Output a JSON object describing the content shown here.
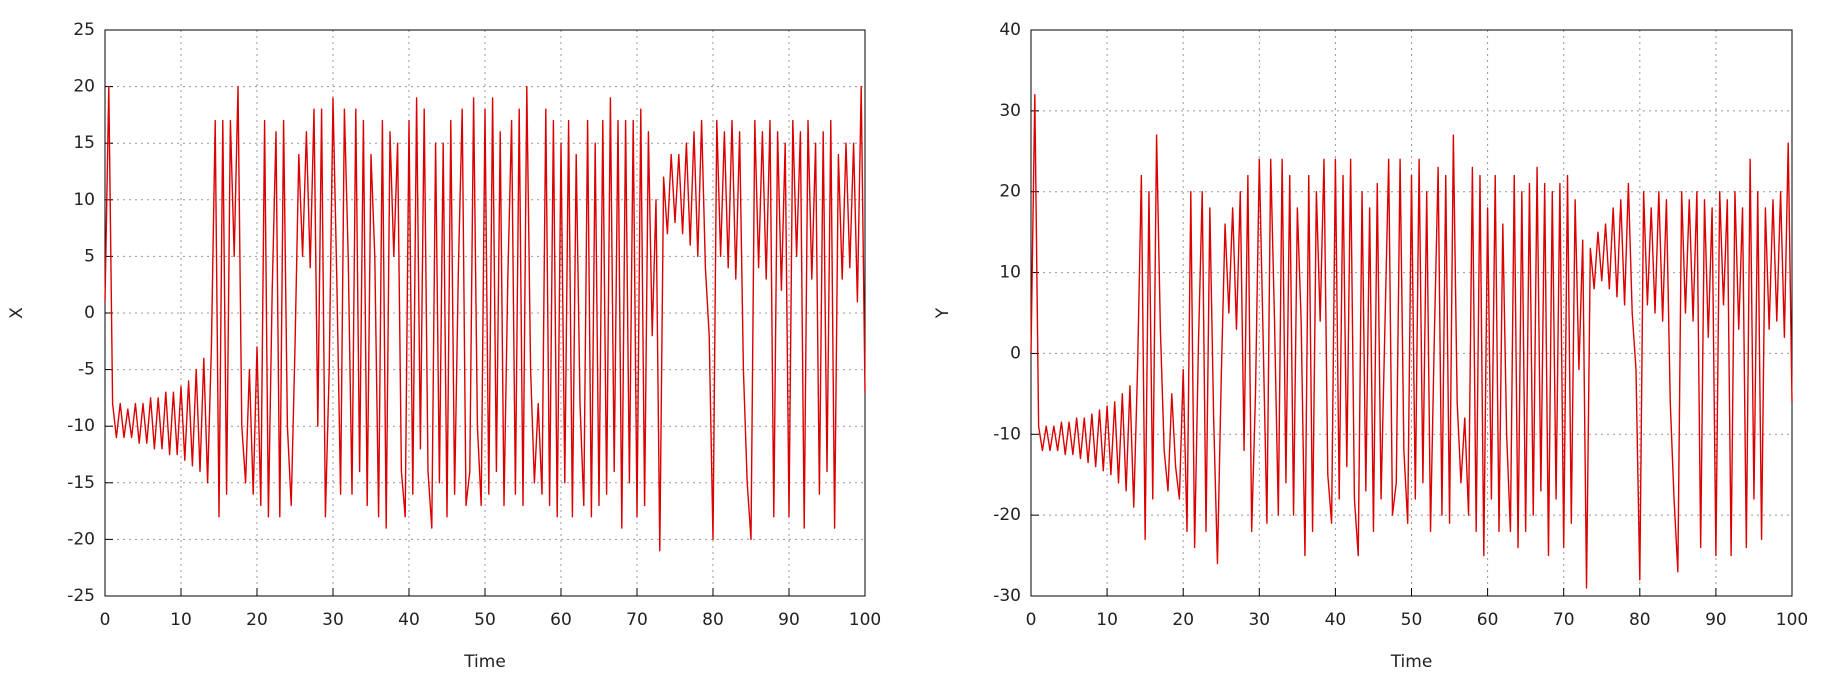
{
  "chart_data": [
    {
      "type": "line",
      "xlabel": "Time",
      "ylabel": "X",
      "color": "#dd0000",
      "grid": true,
      "xlim": [
        0,
        100
      ],
      "xticks": [
        0,
        10,
        20,
        30,
        40,
        50,
        60,
        70,
        80,
        90,
        100
      ],
      "ylim": [
        -25,
        25
      ],
      "yticks": [
        -25,
        -20,
        -15,
        -10,
        -5,
        0,
        5,
        10,
        15,
        20,
        25
      ],
      "x": [
        0,
        0.5,
        1,
        1.5,
        2,
        2.5,
        3,
        3.5,
        4,
        4.5,
        5,
        5.5,
        6,
        6.5,
        7,
        7.5,
        8,
        8.5,
        9,
        9.5,
        10,
        10.5,
        11,
        11.5,
        12,
        12.5,
        13,
        13.5,
        14,
        14.5,
        15,
        15.5,
        16,
        16.5,
        17,
        17.5,
        18,
        18.5,
        19,
        19.5,
        20,
        20.5,
        21,
        21.5,
        22,
        22.5,
        23,
        23.5,
        24,
        24.5,
        25,
        25.5,
        26,
        26.5,
        27,
        27.5,
        28,
        28.5,
        29,
        29.5,
        30,
        30.5,
        31,
        31.5,
        32,
        32.5,
        33,
        33.5,
        34,
        34.5,
        35,
        35.5,
        36,
        36.5,
        37,
        37.5,
        38,
        38.5,
        39,
        39.5,
        40,
        40.5,
        41,
        41.5,
        42,
        42.5,
        43,
        43.5,
        44,
        44.5,
        45,
        45.5,
        46,
        46.5,
        47,
        47.5,
        48,
        48.5,
        49,
        49.5,
        50,
        50.5,
        51,
        51.5,
        52,
        52.5,
        53,
        53.5,
        54,
        54.5,
        55,
        55.5,
        56,
        56.5,
        57,
        57.5,
        58,
        58.5,
        59,
        59.5,
        60,
        60.5,
        61,
        61.5,
        62,
        62.5,
        63,
        63.5,
        64,
        64.5,
        65,
        65.5,
        66,
        66.5,
        67,
        67.5,
        68,
        68.5,
        69,
        69.5,
        70,
        70.5,
        71,
        71.5,
        72,
        72.5,
        73,
        73.5,
        74,
        74.5,
        75,
        75.5,
        76,
        76.5,
        77,
        77.5,
        78,
        78.5,
        79,
        79.5,
        80,
        80.5,
        81,
        81.5,
        82,
        82.5,
        83,
        83.5,
        84,
        84.5,
        85,
        85.5,
        86,
        86.5,
        87,
        87.5,
        88,
        88.5,
        89,
        89.5,
        90,
        90.5,
        91,
        91.5,
        92,
        92.5,
        93,
        93.5,
        94,
        94.5,
        95,
        95.5,
        96,
        96.5,
        97,
        97.5,
        98,
        98.5,
        99,
        99.5,
        100
      ],
      "values": [
        1,
        20,
        -8,
        -11,
        -8,
        -11,
        -8.5,
        -11,
        -8,
        -11.5,
        -8,
        -11.5,
        -7.5,
        -12,
        -7.5,
        -12,
        -7,
        -12.5,
        -7,
        -12.5,
        -6.5,
        -13,
        -6,
        -13.5,
        -5,
        -14,
        -4,
        -15,
        -3,
        17,
        -18,
        17,
        -16,
        17,
        5,
        20,
        -10,
        -15,
        -5,
        -16,
        -3,
        -17,
        17,
        -18,
        2,
        16,
        -18,
        17,
        -10,
        -17,
        -3,
        14,
        5,
        16,
        4,
        18,
        -10,
        18,
        -18,
        -5,
        19,
        3,
        -16,
        18,
        5,
        -16,
        18,
        -14,
        17,
        -17,
        14,
        5,
        -18,
        17,
        -19,
        16,
        5,
        15,
        -14,
        -18,
        17,
        -16,
        19,
        -12,
        18,
        -14,
        -19,
        15,
        -15,
        15,
        -18,
        17,
        -16,
        4,
        18,
        -17,
        -14,
        19,
        -10,
        -17,
        18,
        -16,
        19,
        -14,
        16,
        -17,
        3,
        17,
        -16,
        18,
        -17,
        20,
        -5,
        -15,
        -8,
        -16,
        18,
        -17,
        17,
        -18,
        15,
        -15,
        17,
        -18,
        14,
        -8,
        -17,
        17,
        -18,
        15,
        -17,
        17,
        -16,
        19,
        -14,
        17,
        -19,
        17,
        -15,
        17,
        -18,
        18,
        -17,
        16,
        -2,
        10,
        -21,
        12,
        7,
        14,
        8,
        14,
        7,
        15,
        6,
        16,
        5,
        17,
        4,
        -2,
        -20,
        17,
        5,
        16,
        4,
        17,
        3,
        16,
        -5,
        -15,
        -20,
        17,
        4,
        16,
        3,
        17,
        -18,
        16,
        2,
        15,
        -18,
        17,
        5,
        16,
        -19,
        17,
        3,
        15,
        -16,
        16,
        -14,
        17,
        -19,
        14,
        3,
        15,
        4,
        15,
        1,
        20,
        -7
      ]
    },
    {
      "type": "line",
      "xlabel": "Time",
      "ylabel": "Y",
      "color": "#dd0000",
      "grid": true,
      "xlim": [
        0,
        100
      ],
      "xticks": [
        0,
        10,
        20,
        30,
        40,
        50,
        60,
        70,
        80,
        90,
        100
      ],
      "ylim": [
        -30,
        40
      ],
      "yticks": [
        -30,
        -20,
        -10,
        0,
        10,
        20,
        30,
        40
      ],
      "x": [
        0,
        0.5,
        1,
        1.5,
        2,
        2.5,
        3,
        3.5,
        4,
        4.5,
        5,
        5.5,
        6,
        6.5,
        7,
        7.5,
        8,
        8.5,
        9,
        9.5,
        10,
        10.5,
        11,
        11.5,
        12,
        12.5,
        13,
        13.5,
        14,
        14.5,
        15,
        15.5,
        16,
        16.5,
        17,
        17.5,
        18,
        18.5,
        19,
        19.5,
        20,
        20.5,
        21,
        21.5,
        22,
        22.5,
        23,
        23.5,
        24,
        24.5,
        25,
        25.5,
        26,
        26.5,
        27,
        27.5,
        28,
        28.5,
        29,
        29.5,
        30,
        30.5,
        31,
        31.5,
        32,
        32.5,
        33,
        33.5,
        34,
        34.5,
        35,
        35.5,
        36,
        36.5,
        37,
        37.5,
        38,
        38.5,
        39,
        39.5,
        40,
        40.5,
        41,
        41.5,
        42,
        42.5,
        43,
        43.5,
        44,
        44.5,
        45,
        45.5,
        46,
        46.5,
        47,
        47.5,
        48,
        48.5,
        49,
        49.5,
        50,
        50.5,
        51,
        51.5,
        52,
        52.5,
        53,
        53.5,
        54,
        54.5,
        55,
        55.5,
        56,
        56.5,
        57,
        57.5,
        58,
        58.5,
        59,
        59.5,
        60,
        60.5,
        61,
        61.5,
        62,
        62.5,
        63,
        63.5,
        64,
        64.5,
        65,
        65.5,
        66,
        66.5,
        67,
        67.5,
        68,
        68.5,
        69,
        69.5,
        70,
        70.5,
        71,
        71.5,
        72,
        72.5,
        73,
        73.5,
        74,
        74.5,
        75,
        75.5,
        76,
        76.5,
        77,
        77.5,
        78,
        78.5,
        79,
        79.5,
        80,
        80.5,
        81,
        81.5,
        82,
        82.5,
        83,
        83.5,
        84,
        84.5,
        85,
        85.5,
        86,
        86.5,
        87,
        87.5,
        88,
        88.5,
        89,
        89.5,
        90,
        90.5,
        91,
        91.5,
        92,
        92.5,
        93,
        93.5,
        94,
        94.5,
        95,
        95.5,
        96,
        96.5,
        97,
        97.5,
        98,
        98.5,
        99,
        99.5,
        100
      ],
      "values": [
        0,
        32,
        -9,
        -12,
        -9,
        -12,
        -9,
        -12,
        -8.5,
        -12.5,
        -8.5,
        -12.5,
        -8,
        -13,
        -8,
        -13.5,
        -7.5,
        -14,
        -7,
        -14.5,
        -6.5,
        -15,
        -6,
        -16,
        -5,
        -17,
        -4,
        -19,
        -2,
        22,
        -23,
        20,
        -18,
        27,
        3,
        -12,
        -17,
        -5,
        -14,
        -18,
        -2,
        -22,
        20,
        -24,
        1,
        20,
        -22,
        18,
        -8,
        -26,
        -3,
        16,
        5,
        18,
        3,
        20,
        -12,
        22,
        -22,
        -5,
        24,
        2,
        -21,
        24,
        4,
        -20,
        24,
        -16,
        22,
        -20,
        18,
        4,
        -25,
        22,
        -22,
        20,
        4,
        24,
        -15,
        -21,
        24,
        -18,
        22,
        -14,
        24,
        -18,
        -25,
        20,
        -17,
        18,
        -22,
        21,
        -18,
        3,
        24,
        -20,
        -16,
        24,
        -12,
        -21,
        22,
        -18,
        24,
        -16,
        20,
        -22,
        2,
        23,
        -20,
        22,
        -21,
        27,
        -6,
        -16,
        -8,
        -20,
        23,
        -22,
        22,
        -25,
        18,
        -18,
        22,
        -22,
        16,
        -10,
        -22,
        22,
        -24,
        20,
        -22,
        21,
        -20,
        23,
        -17,
        21,
        -25,
        20,
        -18,
        21,
        -24,
        22,
        -21,
        19,
        -2,
        14,
        -29,
        13,
        8,
        15,
        9,
        16,
        8,
        18,
        7,
        19,
        6,
        21,
        5,
        -2,
        -28,
        20,
        6,
        18,
        5,
        20,
        4,
        19,
        -6,
        -18,
        -27,
        20,
        5,
        19,
        4,
        20,
        -24,
        19,
        2,
        18,
        -25,
        20,
        6,
        19,
        -25,
        20,
        3,
        18,
        -24,
        24,
        -18,
        20,
        -23,
        18,
        3,
        19,
        4,
        20,
        2,
        26,
        -6
      ]
    }
  ]
}
